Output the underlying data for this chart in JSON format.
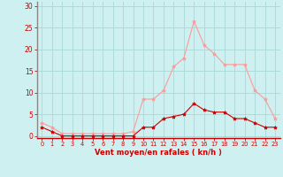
{
  "x": [
    0,
    1,
    2,
    3,
    4,
    5,
    6,
    7,
    8,
    9,
    10,
    11,
    12,
    13,
    14,
    15,
    16,
    17,
    18,
    19,
    20,
    21,
    22,
    23
  ],
  "rafales": [
    3,
    2,
    0.5,
    0.5,
    0.5,
    0.5,
    0.5,
    0.5,
    0.5,
    1,
    8.5,
    8.5,
    10.5,
    16,
    18,
    26.5,
    21,
    19,
    16.5,
    16.5,
    16.5,
    10.5,
    8.5,
    4
  ],
  "moyen": [
    2,
    1,
    0,
    0,
    0,
    0,
    0,
    0,
    0,
    0,
    2,
    2,
    4,
    4.5,
    5,
    7.5,
    6,
    5.5,
    5.5,
    4,
    4,
    3,
    2,
    2
  ],
  "bg_color": "#cff0f0",
  "grid_color": "#aad8d8",
  "line_color_rafales": "#ff9999",
  "line_color_moyen": "#cc0000",
  "marker_color_rafales": "#ff9999",
  "marker_color_moyen": "#cc0000",
  "xlabel": "Vent moyen/en rafales ( kn/h )",
  "xlabel_color": "#cc0000",
  "tick_color": "#cc0000",
  "spine_color": "#888888",
  "bottom_spine_color": "#cc0000",
  "ylim": [
    -0.5,
    31
  ],
  "yticks": [
    0,
    5,
    10,
    15,
    20,
    25,
    30
  ],
  "xlim": [
    -0.5,
    23.5
  ],
  "ytick_fontsize": 5.5,
  "xtick_fontsize": 4.8,
  "xlabel_fontsize": 6.0
}
